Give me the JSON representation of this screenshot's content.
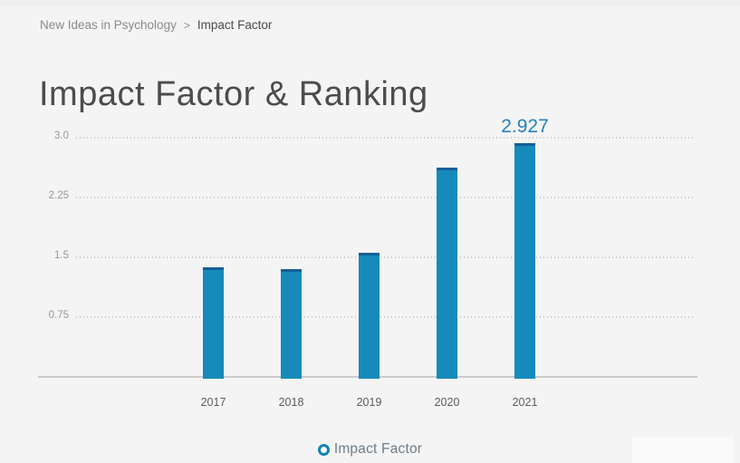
{
  "breadcrumb": {
    "journal": "New Ideas in Psychology",
    "separator": ">",
    "current": "Impact Factor"
  },
  "title": "Impact Factor & Ranking",
  "legend": {
    "label": "Impact Factor",
    "marker": "ring-icon"
  },
  "colors": {
    "background": "#f4f4f4",
    "bar_fill": "#168aba",
    "bar_cap": "#155f96",
    "value_label": "#2580c0",
    "legend_marker": "#1084b4",
    "gridline": "#c8c8c8",
    "axis_line": "#cbcbcb"
  },
  "chart_data": {
    "type": "bar",
    "title": "",
    "xlabel": "",
    "ylabel": "",
    "categories": [
      "2017",
      "2018",
      "2019",
      "2020",
      "2021"
    ],
    "values": [
      1.37,
      1.35,
      1.56,
      2.63,
      2.927
    ],
    "highlight_label": {
      "category": "2021",
      "text": "2.927"
    },
    "yticks": [
      "3.0",
      "2.25",
      "1.5",
      "0.75"
    ],
    "ytick_values": [
      3.0,
      2.25,
      1.5,
      0.75
    ],
    "ylim": [
      0,
      3.2
    ],
    "grid": "dotted-horizontal",
    "legend_position": "bottom-center"
  }
}
